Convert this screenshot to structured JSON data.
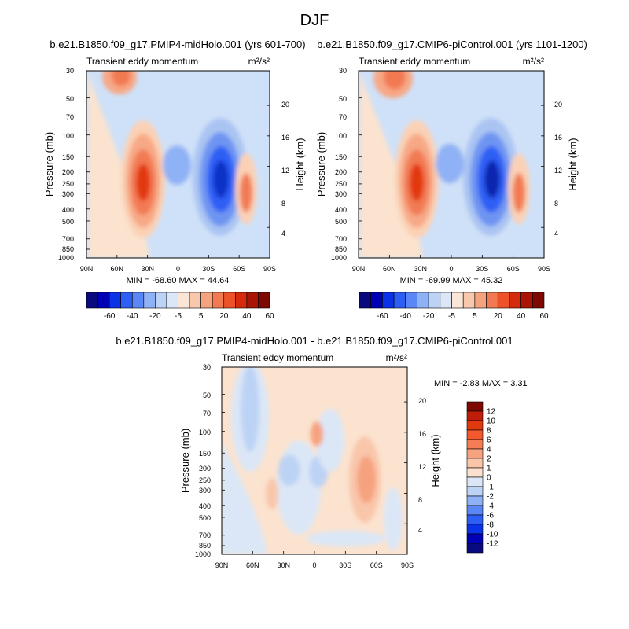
{
  "figure_title": "DJF",
  "chart_data": [
    {
      "type": "heatmap",
      "title": "b.e21.B1850.f09_g17.PMIP4-midHolo.001 (yrs 601-700)",
      "subtitle_left": "Transient eddy momentum",
      "subtitle_right": "m²/s²",
      "ylabel": "Pressure (mb)",
      "y2label": "Height (km)",
      "x_ticks": [
        "90N",
        "60N",
        "30N",
        "0",
        "30S",
        "60S",
        "90S"
      ],
      "x_values": [
        90,
        60,
        30,
        0,
        -30,
        -60,
        -90
      ],
      "y_ticks": [
        "30",
        "50",
        "70",
        "100",
        "150",
        "200",
        "250",
        "300",
        "400",
        "500",
        "700",
        "850",
        "1000"
      ],
      "y_values": [
        30,
        50,
        70,
        100,
        150,
        200,
        250,
        300,
        400,
        500,
        700,
        850,
        1000
      ],
      "height_ticks": [
        "20",
        "16",
        "12",
        "8",
        "4"
      ],
      "height_values": [
        20,
        16,
        12,
        8,
        4
      ],
      "ylim": [
        1000,
        30
      ],
      "stats": "MIN = -68.60  MAX =  44.64",
      "levels": [
        "-60",
        "-40",
        "-20",
        "-5",
        "5",
        "20",
        "40",
        "60"
      ],
      "features": [
        {
          "lat": 27,
          "p": 250,
          "value": 44.6
        },
        {
          "lat": -38,
          "p": 240,
          "value": -68.6
        },
        {
          "lat": -65,
          "p": 300,
          "value": 15
        },
        {
          "lat": 65,
          "p": 35,
          "value": 20
        },
        {
          "lat": 45,
          "p": 80,
          "value": 8
        },
        {
          "lat": 0,
          "p": 130,
          "value": -10
        }
      ]
    },
    {
      "type": "heatmap",
      "title": "b.e21.B1850.f09_g17.CMIP6-piControl.001 (yrs 1101-1200)",
      "subtitle_left": "Transient eddy momentum",
      "subtitle_right": "m²/s²",
      "ylabel": "Pressure (mb)",
      "y2label": "Height (km)",
      "x_ticks": [
        "90N",
        "60N",
        "30N",
        "0",
        "30S",
        "60S",
        "90S"
      ],
      "x_values": [
        90,
        60,
        30,
        0,
        -30,
        -60,
        -90
      ],
      "y_ticks": [
        "30",
        "50",
        "70",
        "100",
        "150",
        "200",
        "250",
        "300",
        "400",
        "500",
        "700",
        "850",
        "1000"
      ],
      "y_values": [
        30,
        50,
        70,
        100,
        150,
        200,
        250,
        300,
        400,
        500,
        700,
        850,
        1000
      ],
      "height_ticks": [
        "20",
        "16",
        "12",
        "8",
        "4"
      ],
      "height_values": [
        20,
        16,
        12,
        8,
        4
      ],
      "ylim": [
        1000,
        30
      ],
      "stats": "MIN = -69.99  MAX =  45.32",
      "levels": [
        "-60",
        "-40",
        "-20",
        "-5",
        "5",
        "20",
        "40",
        "60"
      ],
      "features": [
        {
          "lat": 27,
          "p": 250,
          "value": 45.3
        },
        {
          "lat": -38,
          "p": 240,
          "value": -70
        },
        {
          "lat": -65,
          "p": 300,
          "value": 15
        },
        {
          "lat": 65,
          "p": 35,
          "value": 20
        },
        {
          "lat": 45,
          "p": 80,
          "value": 8
        },
        {
          "lat": 0,
          "p": 130,
          "value": -10
        }
      ]
    },
    {
      "type": "heatmap",
      "title": "b.e21.B1850.f09_g17.PMIP4-midHolo.001 - b.e21.B1850.f09_g17.CMIP6-piControl.001",
      "subtitle_left": "Transient eddy momentum",
      "subtitle_right": "m²/s²",
      "ylabel": "Pressure (mb)",
      "y2label": "Height (km)",
      "x_ticks": [
        "90N",
        "60N",
        "30N",
        "0",
        "30S",
        "60S",
        "90S"
      ],
      "x_values": [
        90,
        60,
        30,
        0,
        -30,
        -60,
        -90
      ],
      "y_ticks": [
        "30",
        "50",
        "70",
        "100",
        "150",
        "200",
        "250",
        "300",
        "400",
        "500",
        "700",
        "850",
        "1000"
      ],
      "y_values": [
        30,
        50,
        70,
        100,
        150,
        200,
        250,
        300,
        400,
        500,
        700,
        850,
        1000
      ],
      "height_ticks": [
        "20",
        "16",
        "12",
        "8",
        "4"
      ],
      "height_values": [
        20,
        16,
        12,
        8,
        4
      ],
      "ylim": [
        1000,
        30
      ],
      "stats": "MIN =  -2.83  MAX =   3.31",
      "levels": [
        "12",
        "10",
        "8",
        "6",
        "4",
        "2",
        "1",
        "0",
        "-1",
        "-2",
        "-4",
        "-6",
        "-8",
        "-10",
        "-12"
      ],
      "features": [
        {
          "lat": 60,
          "p": 60,
          "value": -1.5
        },
        {
          "lat": 25,
          "p": 250,
          "value": -1.2
        },
        {
          "lat": -48,
          "p": 230,
          "value": 2.5
        },
        {
          "lat": -3,
          "p": 105,
          "value": 3.3
        },
        {
          "lat": 0,
          "p": 200,
          "value": -1.5
        },
        {
          "lat": 45,
          "p": 300,
          "value": 1
        }
      ]
    }
  ],
  "colorbars": {
    "shared_top": {
      "labels": [
        "-60",
        "-40",
        "-20",
        "-5",
        "5",
        "20",
        "40",
        "60"
      ],
      "colors": [
        "#0a0a7f",
        "#0000b4",
        "#0a32e6",
        "#2d5ff5",
        "#5a87f5",
        "#8fb1f5",
        "#bdd3f5",
        "#dbe7f7",
        "#fbe5d6",
        "#f8c8ad",
        "#f5a27f",
        "#f27a52",
        "#ee5228",
        "#d52a0c",
        "#aa1405",
        "#7d0a02"
      ]
    },
    "diff": {
      "labels": [
        "12",
        "10",
        "8",
        "6",
        "4",
        "2",
        "1",
        "0",
        "-1",
        "-2",
        "-4",
        "-6",
        "-8",
        "-10",
        "-12"
      ],
      "colors": [
        "#7d0a02",
        "#c01d08",
        "#e2380f",
        "#f25a2d",
        "#f57d55",
        "#f7a27f",
        "#f9c6aa",
        "#fbe1cd",
        "#dbe7f7",
        "#bdd3f5",
        "#8fb1f5",
        "#5a87f5",
        "#2d5ff5",
        "#0a32e6",
        "#0000b4",
        "#0a0a7f"
      ]
    }
  }
}
